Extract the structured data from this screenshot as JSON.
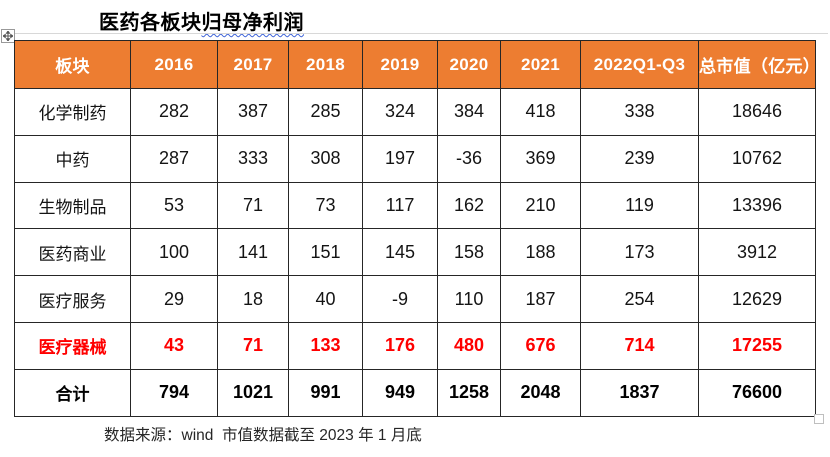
{
  "title": {
    "plain": "医药各板块",
    "underlined": "归母净利润"
  },
  "table": {
    "columns": [
      "板块",
      "2016",
      "2017",
      "2018",
      "2019",
      "2020",
      "2021",
      "2022Q1-Q3",
      "总市值（亿元）"
    ],
    "rows": [
      {
        "label": "化学制药",
        "values": [
          "282",
          "387",
          "285",
          "324",
          "384",
          "418",
          "338",
          "18646"
        ],
        "style": "normal"
      },
      {
        "label": "中药",
        "values": [
          "287",
          "333",
          "308",
          "197",
          "-36",
          "369",
          "239",
          "10762"
        ],
        "style": "normal"
      },
      {
        "label": "生物制品",
        "values": [
          "53",
          "71",
          "73",
          "117",
          "162",
          "210",
          "119",
          "13396"
        ],
        "style": "normal"
      },
      {
        "label": "医药商业",
        "values": [
          "100",
          "141",
          "151",
          "145",
          "158",
          "188",
          "173",
          "3912"
        ],
        "style": "normal"
      },
      {
        "label": "医疗服务",
        "values": [
          "29",
          "18",
          "40",
          "-9",
          "110",
          "187",
          "254",
          "12629"
        ],
        "style": "normal"
      },
      {
        "label": "医疗器械",
        "values": [
          "43",
          "71",
          "133",
          "176",
          "480",
          "676",
          "714",
          "17255"
        ],
        "style": "highlight-red"
      },
      {
        "label": "合计",
        "values": [
          "794",
          "1021",
          "991",
          "949",
          "1258",
          "2048",
          "1837",
          "76600"
        ],
        "style": "total-bold"
      }
    ]
  },
  "footer": {
    "source_note": "数据来源：wind  市值数据截至 2023 年 1 月底"
  },
  "colors": {
    "header_bg": "#ED7D31",
    "header_text": "#FFFFFF",
    "highlight": "#FF0000",
    "border": "#262626",
    "underline": "#3E63D8"
  },
  "icons": {
    "move_handle": "move-cross-icon",
    "resize_handle": "resize-square-handle"
  }
}
